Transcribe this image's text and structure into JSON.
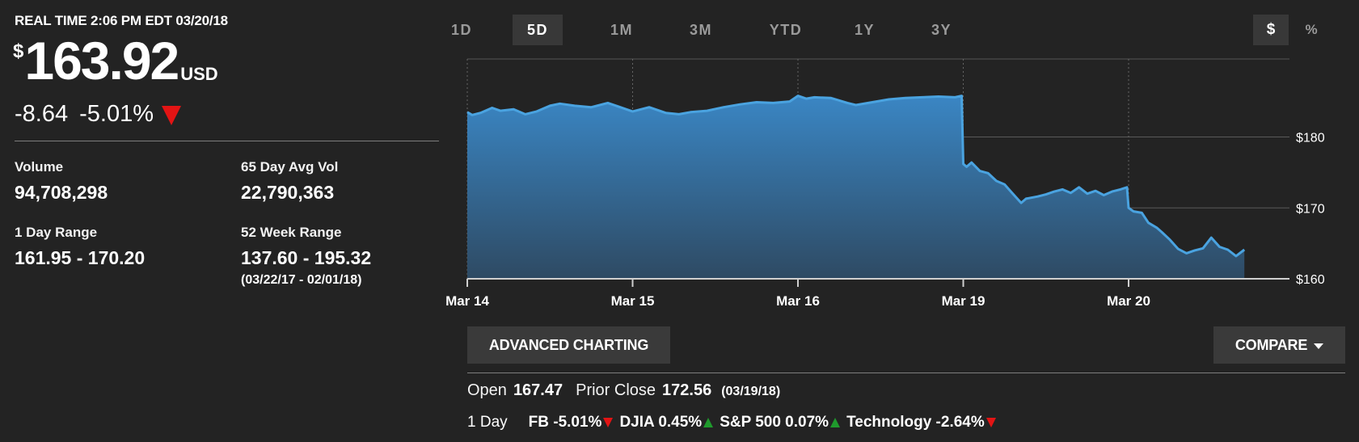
{
  "quote": {
    "realtime_label": "REAL TIME 2:06 PM EDT 03/20/18",
    "currency_symbol": "$",
    "price": "163.92",
    "unit": "USD",
    "change": "-8.64",
    "change_pct": "-5.01%",
    "direction": "down"
  },
  "stats": {
    "volume_label": "Volume",
    "volume_value": "94,708,298",
    "avg_vol_label": "65 Day Avg Vol",
    "avg_vol_value": "22,790,363",
    "day_range_label": "1 Day Range",
    "day_range_value": "161.95 - 170.20",
    "week52_label": "52 Week Range",
    "week52_value": "137.60 - 195.32",
    "week52_dates": "(03/22/17 - 02/01/18)"
  },
  "range_tabs": [
    "1D",
    "5D",
    "1M",
    "3M",
    "YTD",
    "1Y",
    "3Y"
  ],
  "active_range": "5D",
  "modes": {
    "dollar": "$",
    "percent": "%",
    "active": "$"
  },
  "chart_data": {
    "type": "area",
    "x_ticks": [
      "Mar 14",
      "Mar 15",
      "Mar 16",
      "Mar 19",
      "Mar 20"
    ],
    "y_ticks": [
      "$160",
      "$170",
      "$180"
    ],
    "ylim": [
      160,
      191
    ],
    "grid": true,
    "color": "#3f8fcf",
    "x": [
      0,
      0.03,
      0.08,
      0.15,
      0.2,
      0.28,
      0.35,
      0.42,
      0.5,
      0.56,
      0.65,
      0.75,
      0.85,
      0.95,
      1.0,
      1.1,
      1.2,
      1.28,
      1.35,
      1.45,
      1.55,
      1.65,
      1.75,
      1.85,
      1.95,
      2.0,
      2.05,
      2.1,
      2.2,
      2.3,
      2.35,
      2.45,
      2.55,
      2.65,
      2.75,
      2.85,
      2.95,
      2.99,
      3.0,
      3.02,
      3.05,
      3.1,
      3.15,
      3.2,
      3.25,
      3.3,
      3.35,
      3.38,
      3.45,
      3.5,
      3.55,
      3.6,
      3.65,
      3.7,
      3.75,
      3.8,
      3.85,
      3.9,
      3.95,
      3.99,
      4.0,
      4.03,
      4.08,
      4.12,
      4.17,
      4.2,
      4.25,
      4.3,
      4.35,
      4.4,
      4.45,
      4.5,
      4.55,
      4.6,
      4.65,
      4.7
    ],
    "values": [
      183.5,
      183.1,
      183.4,
      184.1,
      183.7,
      183.9,
      183.2,
      183.6,
      184.4,
      184.7,
      184.4,
      184.2,
      184.8,
      184.0,
      183.6,
      184.2,
      183.4,
      183.2,
      183.5,
      183.7,
      184.2,
      184.6,
      184.9,
      184.8,
      185.0,
      185.8,
      185.4,
      185.6,
      185.5,
      184.8,
      184.5,
      184.9,
      185.3,
      185.5,
      185.6,
      185.7,
      185.6,
      185.8,
      176.2,
      175.8,
      176.4,
      175.2,
      174.9,
      173.8,
      173.3,
      172.0,
      170.7,
      171.3,
      171.6,
      171.9,
      172.3,
      172.6,
      172.1,
      172.9,
      172.0,
      172.4,
      171.8,
      172.3,
      172.6,
      172.9,
      170.0,
      169.5,
      169.3,
      167.9,
      167.2,
      166.6,
      165.5,
      164.2,
      163.6,
      164.0,
      164.3,
      165.8,
      164.5,
      164.1,
      163.2,
      164.1
    ]
  },
  "buttons": {
    "advanced": "ADVANCED CHARTING",
    "compare": "COMPARE"
  },
  "summary": {
    "open_label": "Open",
    "open_value": "167.47",
    "prior_label": "Prior Close",
    "prior_value": "172.56",
    "prior_date": "(03/19/18)"
  },
  "indices": {
    "label": "1 Day",
    "items": [
      {
        "text": "FB -5.01%",
        "dir": "down"
      },
      {
        "text": "DJIA 0.45%",
        "dir": "up"
      },
      {
        "text": "S&P 500 0.07%",
        "dir": "up"
      },
      {
        "text": "Technology -2.64%",
        "dir": "down"
      }
    ]
  }
}
